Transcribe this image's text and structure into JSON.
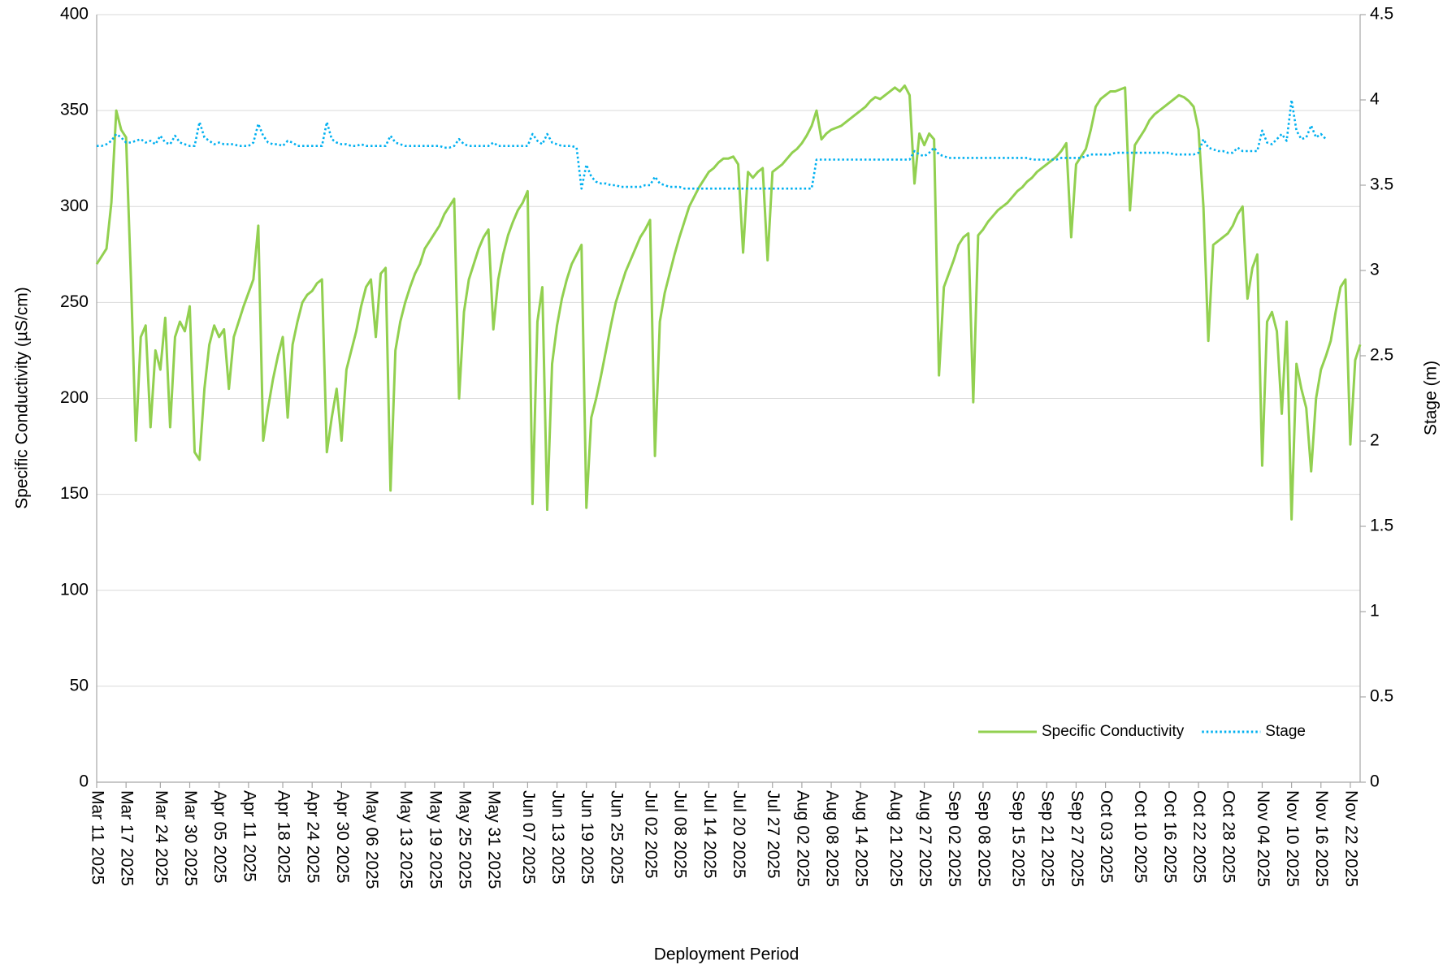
{
  "chart_data": {
    "type": "line",
    "x_label": "Deployment Period",
    "y_label": "Specific Conductivity (µS/cm)",
    "y2_label": "Stage (m)",
    "legend": "lower right",
    "grid": true,
    "xlim": [
      "2025-03-11",
      "2025-11-24"
    ],
    "xticks": [
      {
        "value": "2025-03-11",
        "label": "Mar 11 2025"
      },
      {
        "value": "2025-03-17",
        "label": "Mar 17 2025"
      },
      {
        "value": "2025-03-24",
        "label": "Mar 24 2025"
      },
      {
        "value": "2025-03-30",
        "label": "Mar 30 2025"
      },
      {
        "value": "2025-04-05",
        "label": "Apr 05 2025"
      },
      {
        "value": "2025-04-11",
        "label": "Apr 11 2025"
      },
      {
        "value": "2025-04-18",
        "label": "Apr 18 2025"
      },
      {
        "value": "2025-04-24",
        "label": "Apr 24 2025"
      },
      {
        "value": "2025-04-30",
        "label": "Apr 30 2025"
      },
      {
        "value": "2025-05-06",
        "label": "May 06 2025"
      },
      {
        "value": "2025-05-13",
        "label": "May 13 2025"
      },
      {
        "value": "2025-05-19",
        "label": "May 19 2025"
      },
      {
        "value": "2025-05-25",
        "label": "May 25 2025"
      },
      {
        "value": "2025-05-31",
        "label": "May 31 2025"
      },
      {
        "value": "2025-06-07",
        "label": "Jun 07 2025"
      },
      {
        "value": "2025-06-13",
        "label": "Jun 13 2025"
      },
      {
        "value": "2025-06-19",
        "label": "Jun 19 2025"
      },
      {
        "value": "2025-06-25",
        "label": "Jun 25 2025"
      },
      {
        "value": "2025-07-02",
        "label": "Jul 02 2025"
      },
      {
        "value": "2025-07-08",
        "label": "Jul 08 2025"
      },
      {
        "value": "2025-07-14",
        "label": "Jul 14 2025"
      },
      {
        "value": "2025-07-20",
        "label": "Jul 20 2025"
      },
      {
        "value": "2025-07-27",
        "label": "Jul 27 2025"
      },
      {
        "value": "2025-08-02",
        "label": "Aug 02 2025"
      },
      {
        "value": "2025-08-08",
        "label": "Aug 08 2025"
      },
      {
        "value": "2025-08-14",
        "label": "Aug 14 2025"
      },
      {
        "value": "2025-08-21",
        "label": "Aug 21 2025"
      },
      {
        "value": "2025-08-27",
        "label": "Aug 27 2025"
      },
      {
        "value": "2025-09-02",
        "label": "Sep 02 2025"
      },
      {
        "value": "2025-09-08",
        "label": "Sep 08 2025"
      },
      {
        "value": "2025-09-15",
        "label": "Sep 15 2025"
      },
      {
        "value": "2025-09-21",
        "label": "Sep 21 2025"
      },
      {
        "value": "2025-09-27",
        "label": "Sep 27 2025"
      },
      {
        "value": "2025-10-03",
        "label": "Oct 03 2025"
      },
      {
        "value": "2025-10-10",
        "label": "Oct 10 2025"
      },
      {
        "value": "2025-10-16",
        "label": "Oct 16 2025"
      },
      {
        "value": "2025-10-22",
        "label": "Oct 22 2025"
      },
      {
        "value": "2025-10-28",
        "label": "Oct 28 2025"
      },
      {
        "value": "2025-11-04",
        "label": "Nov 04 2025"
      },
      {
        "value": "2025-11-10",
        "label": "Nov 10 2025"
      },
      {
        "value": "2025-11-16",
        "label": "Nov 16 2025"
      },
      {
        "value": "2025-11-22",
        "label": "Nov 22 2025"
      }
    ],
    "ylim": [
      0,
      400
    ],
    "yticks": [
      0,
      50,
      100,
      150,
      200,
      250,
      300,
      350,
      400
    ],
    "y2lim": [
      0,
      4.5
    ],
    "y2ticks": [
      0,
      0.5,
      1,
      1.5,
      2,
      2.5,
      3,
      3.5,
      4,
      4.5
    ],
    "x": [
      "2025-03-11",
      "2025-03-12",
      "2025-03-13",
      "2025-03-14",
      "2025-03-15",
      "2025-03-16",
      "2025-03-17",
      "2025-03-18",
      "2025-03-19",
      "2025-03-20",
      "2025-03-21",
      "2025-03-22",
      "2025-03-23",
      "2025-03-24",
      "2025-03-25",
      "2025-03-26",
      "2025-03-27",
      "2025-03-28",
      "2025-03-29",
      "2025-03-30",
      "2025-03-31",
      "2025-04-01",
      "2025-04-02",
      "2025-04-03",
      "2025-04-04",
      "2025-04-05",
      "2025-04-06",
      "2025-04-07",
      "2025-04-08",
      "2025-04-09",
      "2025-04-10",
      "2025-04-11",
      "2025-04-12",
      "2025-04-13",
      "2025-04-14",
      "2025-04-15",
      "2025-04-16",
      "2025-04-17",
      "2025-04-18",
      "2025-04-19",
      "2025-04-20",
      "2025-04-21",
      "2025-04-22",
      "2025-04-23",
      "2025-04-24",
      "2025-04-25",
      "2025-04-26",
      "2025-04-27",
      "2025-04-28",
      "2025-04-29",
      "2025-04-30",
      "2025-05-01",
      "2025-05-02",
      "2025-05-03",
      "2025-05-04",
      "2025-05-05",
      "2025-05-06",
      "2025-05-07",
      "2025-05-08",
      "2025-05-09",
      "2025-05-10",
      "2025-05-11",
      "2025-05-12",
      "2025-05-13",
      "2025-05-14",
      "2025-05-15",
      "2025-05-16",
      "2025-05-17",
      "2025-05-18",
      "2025-05-19",
      "2025-05-20",
      "2025-05-21",
      "2025-05-22",
      "2025-05-23",
      "2025-05-24",
      "2025-05-25",
      "2025-05-26",
      "2025-05-27",
      "2025-05-28",
      "2025-05-29",
      "2025-05-30",
      "2025-05-31",
      "2025-06-01",
      "2025-06-02",
      "2025-06-03",
      "2025-06-04",
      "2025-06-05",
      "2025-06-06",
      "2025-06-07",
      "2025-06-08",
      "2025-06-09",
      "2025-06-10",
      "2025-06-11",
      "2025-06-12",
      "2025-06-13",
      "2025-06-14",
      "2025-06-15",
      "2025-06-16",
      "2025-06-17",
      "2025-06-18",
      "2025-06-19",
      "2025-06-20",
      "2025-06-21",
      "2025-06-22",
      "2025-06-23",
      "2025-06-24",
      "2025-06-25",
      "2025-06-26",
      "2025-06-27",
      "2025-06-28",
      "2025-06-29",
      "2025-06-30",
      "2025-07-01",
      "2025-07-02",
      "2025-07-03",
      "2025-07-04",
      "2025-07-05",
      "2025-07-06",
      "2025-07-07",
      "2025-07-08",
      "2025-07-09",
      "2025-07-10",
      "2025-07-11",
      "2025-07-12",
      "2025-07-13",
      "2025-07-14",
      "2025-07-15",
      "2025-07-16",
      "2025-07-17",
      "2025-07-18",
      "2025-07-19",
      "2025-07-20",
      "2025-07-21",
      "2025-07-22",
      "2025-07-23",
      "2025-07-24",
      "2025-07-25",
      "2025-07-26",
      "2025-07-27",
      "2025-07-28",
      "2025-07-29",
      "2025-07-30",
      "2025-07-31",
      "2025-08-01",
      "2025-08-02",
      "2025-08-03",
      "2025-08-04",
      "2025-08-05",
      "2025-08-06",
      "2025-08-07",
      "2025-08-08",
      "2025-08-09",
      "2025-08-10",
      "2025-08-11",
      "2025-08-12",
      "2025-08-13",
      "2025-08-14",
      "2025-08-15",
      "2025-08-16",
      "2025-08-17",
      "2025-08-18",
      "2025-08-19",
      "2025-08-20",
      "2025-08-21",
      "2025-08-22",
      "2025-08-23",
      "2025-08-24",
      "2025-08-25",
      "2025-08-26",
      "2025-08-27",
      "2025-08-28",
      "2025-08-29",
      "2025-08-30",
      "2025-08-31",
      "2025-09-01",
      "2025-09-02",
      "2025-09-03",
      "2025-09-04",
      "2025-09-05",
      "2025-09-06",
      "2025-09-07",
      "2025-09-08",
      "2025-09-09",
      "2025-09-10",
      "2025-09-11",
      "2025-09-12",
      "2025-09-13",
      "2025-09-14",
      "2025-09-15",
      "2025-09-16",
      "2025-09-17",
      "2025-09-18",
      "2025-09-19",
      "2025-09-20",
      "2025-09-21",
      "2025-09-22",
      "2025-09-23",
      "2025-09-24",
      "2025-09-25",
      "2025-09-26",
      "2025-09-27",
      "2025-09-28",
      "2025-09-29",
      "2025-09-30",
      "2025-10-01",
      "2025-10-02",
      "2025-10-03",
      "2025-10-04",
      "2025-10-05",
      "2025-10-06",
      "2025-10-07",
      "2025-10-08",
      "2025-10-09",
      "2025-10-10",
      "2025-10-11",
      "2025-10-12",
      "2025-10-13",
      "2025-10-14",
      "2025-10-15",
      "2025-10-16",
      "2025-10-17",
      "2025-10-18",
      "2025-10-19",
      "2025-10-20",
      "2025-10-21",
      "2025-10-22",
      "2025-10-23",
      "2025-10-24",
      "2025-10-25",
      "2025-10-26",
      "2025-10-27",
      "2025-10-28",
      "2025-10-29",
      "2025-10-30",
      "2025-10-31",
      "2025-11-01",
      "2025-11-02",
      "2025-11-03",
      "2025-11-04",
      "2025-11-05",
      "2025-11-06",
      "2025-11-07",
      "2025-11-08",
      "2025-11-09",
      "2025-11-10",
      "2025-11-11",
      "2025-11-12",
      "2025-11-13",
      "2025-11-14",
      "2025-11-15",
      "2025-11-16",
      "2025-11-17",
      "2025-11-18",
      "2025-11-19",
      "2025-11-20",
      "2025-11-21",
      "2025-11-22",
      "2025-11-23",
      "2025-11-24"
    ],
    "series": [
      {
        "name": "Specific Conductivity",
        "color": "#92d050",
        "style": "solid",
        "values": [
          270,
          274,
          278,
          302,
          350,
          340,
          336,
          262,
          178,
          232,
          238,
          185,
          225,
          215,
          242,
          185,
          232,
          240,
          235,
          248,
          172,
          168,
          205,
          228,
          238,
          232,
          236,
          205,
          232,
          240,
          248,
          255,
          262,
          290,
          178,
          195,
          210,
          222,
          232,
          190,
          228,
          240,
          250,
          254,
          256,
          260,
          262,
          172,
          190,
          205,
          178,
          215,
          225,
          235,
          248,
          258,
          262,
          232,
          265,
          268,
          152,
          225,
          240,
          250,
          258,
          265,
          270,
          278,
          282,
          286,
          290,
          296,
          300,
          304,
          200,
          245,
          262,
          270,
          278,
          284,
          288,
          236,
          262,
          275,
          285,
          292,
          298,
          302,
          308,
          145,
          240,
          258,
          142,
          218,
          238,
          252,
          262,
          270,
          275,
          280,
          143,
          190,
          200,
          212,
          225,
          238,
          250,
          258,
          266,
          272,
          278,
          284,
          288,
          293,
          170,
          240,
          255,
          265,
          275,
          284,
          292,
          300,
          305,
          310,
          314,
          318,
          320,
          323,
          325,
          325,
          326,
          322,
          276,
          318,
          315,
          318,
          320,
          272,
          318,
          320,
          322,
          325,
          328,
          330,
          333,
          337,
          342,
          350,
          335,
          338,
          340,
          341,
          342,
          344,
          346,
          348,
          350,
          352,
          355,
          357,
          356,
          358,
          360,
          362,
          360,
          363,
          358,
          312,
          338,
          332,
          338,
          335,
          212,
          258,
          265,
          272,
          280,
          284,
          286,
          198,
          285,
          288,
          292,
          295,
          298,
          300,
          302,
          305,
          308,
          310,
          313,
          315,
          318,
          320,
          322,
          324,
          326,
          329,
          333,
          284,
          322,
          326,
          330,
          340,
          352,
          356,
          358,
          360,
          360,
          361,
          362,
          298,
          332,
          336,
          340,
          345,
          348,
          350,
          352,
          354,
          356,
          358,
          357,
          355,
          352,
          340,
          300,
          230,
          280,
          282,
          284,
          286,
          290,
          296,
          300,
          252,
          268,
          275,
          165,
          240,
          245,
          235,
          192,
          240,
          137,
          218,
          205,
          195,
          162,
          200,
          215,
          222,
          230,
          245,
          258,
          262,
          176,
          220,
          228
        ]
      },
      {
        "name": "Stage",
        "color": "#00b0f0",
        "style": "dotted",
        "axis": "y2",
        "values": [
          3.73,
          3.73,
          3.74,
          3.76,
          3.8,
          3.78,
          3.75,
          3.75,
          3.76,
          3.77,
          3.75,
          3.76,
          3.74,
          3.79,
          3.75,
          3.74,
          3.79,
          3.75,
          3.74,
          3.73,
          3.73,
          3.87,
          3.78,
          3.76,
          3.74,
          3.75,
          3.74,
          3.74,
          3.74,
          3.73,
          3.73,
          3.73,
          3.75,
          3.86,
          3.79,
          3.75,
          3.74,
          3.74,
          3.73,
          3.76,
          3.75,
          3.73,
          3.73,
          3.73,
          3.73,
          3.73,
          3.73,
          3.87,
          3.77,
          3.75,
          3.74,
          3.74,
          3.73,
          3.73,
          3.74,
          3.73,
          3.73,
          3.73,
          3.73,
          3.73,
          3.79,
          3.75,
          3.74,
          3.73,
          3.73,
          3.73,
          3.73,
          3.73,
          3.73,
          3.73,
          3.73,
          3.72,
          3.72,
          3.73,
          3.77,
          3.74,
          3.73,
          3.73,
          3.73,
          3.73,
          3.73,
          3.75,
          3.73,
          3.73,
          3.73,
          3.73,
          3.73,
          3.73,
          3.73,
          3.8,
          3.76,
          3.74,
          3.8,
          3.75,
          3.74,
          3.73,
          3.73,
          3.73,
          3.72,
          3.48,
          3.62,
          3.55,
          3.52,
          3.51,
          3.51,
          3.5,
          3.5,
          3.49,
          3.49,
          3.49,
          3.49,
          3.49,
          3.5,
          3.5,
          3.55,
          3.51,
          3.5,
          3.49,
          3.49,
          3.49,
          3.48,
          3.48,
          3.48,
          3.48,
          3.48,
          3.48,
          3.48,
          3.48,
          3.48,
          3.48,
          3.48,
          3.48,
          3.48,
          3.48,
          3.48,
          3.48,
          3.48,
          3.48,
          3.48,
          3.48,
          3.48,
          3.48,
          3.48,
          3.48,
          3.48,
          3.48,
          3.48,
          3.65,
          3.65,
          3.65,
          3.65,
          3.65,
          3.65,
          3.65,
          3.65,
          3.65,
          3.65,
          3.65,
          3.65,
          3.65,
          3.65,
          3.65,
          3.65,
          3.65,
          3.65,
          3.65,
          3.65,
          3.7,
          3.68,
          3.67,
          3.69,
          3.72,
          3.68,
          3.67,
          3.66,
          3.66,
          3.66,
          3.66,
          3.66,
          3.66,
          3.66,
          3.66,
          3.66,
          3.66,
          3.66,
          3.66,
          3.66,
          3.66,
          3.66,
          3.66,
          3.66,
          3.65,
          3.65,
          3.65,
          3.65,
          3.65,
          3.65,
          3.66,
          3.66,
          3.66,
          3.66,
          3.66,
          3.67,
          3.68,
          3.68,
          3.68,
          3.68,
          3.68,
          3.69,
          3.69,
          3.69,
          3.69,
          3.69,
          3.69,
          3.69,
          3.69,
          3.69,
          3.69,
          3.69,
          3.69,
          3.68,
          3.68,
          3.68,
          3.68,
          3.68,
          3.69,
          3.77,
          3.72,
          3.71,
          3.7,
          3.7,
          3.69,
          3.69,
          3.72,
          3.7,
          3.7,
          3.7,
          3.7,
          3.82,
          3.75,
          3.74,
          3.77,
          3.8,
          3.76,
          4.0,
          3.82,
          3.77,
          3.78,
          3.85,
          3.78,
          3.8,
          3.77,
          null,
          null,
          null,
          null,
          null,
          null,
          null
        ]
      }
    ]
  }
}
